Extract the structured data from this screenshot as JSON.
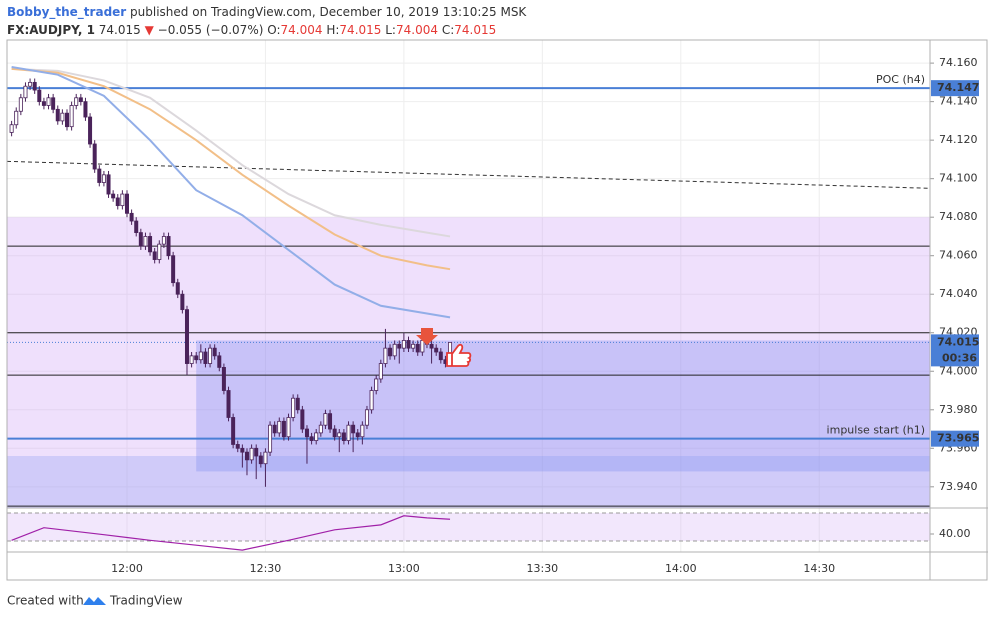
{
  "header": {
    "author": "Bobby_the_trader",
    "published": "published on TradingView.com, December 10, 2019 13:10:25 MSK"
  },
  "footer": {
    "created": "Created with",
    "brand": "TradingView"
  },
  "chart_data": {
    "type": "candlestick",
    "legend": {
      "symbol": "FX:AUDJPY, 1",
      "last": 74.015,
      "arrow": "▼",
      "change": "−0.055 (−0.07%)",
      "fields": [
        {
          "label": "O:",
          "value": 74.004
        },
        {
          "label": "H:",
          "value": 74.015
        },
        {
          "label": "L:",
          "value": 74.004
        },
        {
          "label": "C:",
          "value": 74.015
        }
      ]
    },
    "x": [
      "11:35",
      "11:36",
      "11:37",
      "11:38",
      "11:39",
      "11:40",
      "11:41",
      "11:42",
      "11:43",
      "11:44",
      "11:45",
      "11:46",
      "11:47",
      "11:48",
      "11:49",
      "11:50",
      "11:51",
      "11:52",
      "11:53",
      "11:54",
      "11:55",
      "11:56",
      "11:57",
      "11:58",
      "11:59",
      "12:00",
      "12:01",
      "12:02",
      "12:03",
      "12:04",
      "12:05",
      "12:06",
      "12:07",
      "12:08",
      "12:09",
      "12:10",
      "12:11",
      "12:12",
      "12:13",
      "12:14",
      "12:15",
      "12:16",
      "12:17",
      "12:18",
      "12:19",
      "12:20",
      "12:21",
      "12:22",
      "12:23",
      "12:24",
      "12:25",
      "12:26",
      "12:27",
      "12:28",
      "12:29",
      "12:30",
      "12:31",
      "12:32",
      "12:33",
      "12:34",
      "12:35",
      "12:36",
      "12:37",
      "12:38",
      "12:39",
      "12:40",
      "12:41",
      "12:42",
      "12:43",
      "12:44",
      "12:45",
      "12:46",
      "12:47",
      "12:48",
      "12:49",
      "12:50",
      "12:51",
      "12:52",
      "12:53",
      "12:54",
      "12:55",
      "12:56",
      "12:57",
      "12:58",
      "12:59",
      "13:00",
      "13:01",
      "13:02",
      "13:03",
      "13:04",
      "13:05",
      "13:06",
      "13:07",
      "13:08",
      "13:09",
      "13:10"
    ],
    "ohlc": [
      [
        74.124,
        74.13,
        74.122,
        74.128
      ],
      [
        74.128,
        74.137,
        74.126,
        74.135
      ],
      [
        74.135,
        74.144,
        74.133,
        74.142
      ],
      [
        74.142,
        74.15,
        74.14,
        74.148
      ],
      [
        74.148,
        74.152,
        74.146,
        74.15
      ],
      [
        74.15,
        74.152,
        74.144,
        74.146
      ],
      [
        74.146,
        74.148,
        74.138,
        74.14
      ],
      [
        74.14,
        74.142,
        74.136,
        74.138
      ],
      [
        74.138,
        74.144,
        74.136,
        74.142
      ],
      [
        74.142,
        74.144,
        74.134,
        74.136
      ],
      [
        74.136,
        74.138,
        74.128,
        74.13
      ],
      [
        74.13,
        74.136,
        74.128,
        74.134
      ],
      [
        74.134,
        74.136,
        74.125,
        74.127
      ],
      [
        74.127,
        74.14,
        74.125,
        74.138
      ],
      [
        74.138,
        74.144,
        74.136,
        74.142
      ],
      [
        74.142,
        74.144,
        74.138,
        74.14
      ],
      [
        74.14,
        74.142,
        74.13,
        74.132
      ],
      [
        74.132,
        74.134,
        74.116,
        74.118
      ],
      [
        74.118,
        74.12,
        74.103,
        74.105
      ],
      [
        74.105,
        74.107,
        74.096,
        74.098
      ],
      [
        74.098,
        74.104,
        74.096,
        74.102
      ],
      [
        74.102,
        74.104,
        74.09,
        74.092
      ],
      [
        74.092,
        74.094,
        74.088,
        74.09
      ],
      [
        74.09,
        74.092,
        74.084,
        74.086
      ],
      [
        74.086,
        74.094,
        74.084,
        74.092
      ],
      [
        74.092,
        74.094,
        74.08,
        74.082
      ],
      [
        74.082,
        74.084,
        74.076,
        74.078
      ],
      [
        74.078,
        74.08,
        74.07,
        74.072
      ],
      [
        74.072,
        74.074,
        74.063,
        74.065
      ],
      [
        74.065,
        74.072,
        74.063,
        74.07
      ],
      [
        74.07,
        74.072,
        74.06,
        74.062
      ],
      [
        74.062,
        74.064,
        74.056,
        74.058
      ],
      [
        74.058,
        74.068,
        74.056,
        74.066
      ],
      [
        74.066,
        74.072,
        74.064,
        74.07
      ],
      [
        74.07,
        74.072,
        74.058,
        74.06
      ],
      [
        74.06,
        74.062,
        74.044,
        74.046
      ],
      [
        74.046,
        74.048,
        74.038,
        74.04
      ],
      [
        74.04,
        74.042,
        74.03,
        74.032
      ],
      [
        74.032,
        74.034,
        73.998,
        74.004
      ],
      [
        74.004,
        74.01,
        74.002,
        74.008
      ],
      [
        74.008,
        74.01,
        74.004,
        74.006
      ],
      [
        74.006,
        74.014,
        74.004,
        74.01
      ],
      [
        74.01,
        74.012,
        74.002,
        74.004
      ],
      [
        74.004,
        74.014,
        74.002,
        74.012
      ],
      [
        74.012,
        74.014,
        74.006,
        74.008
      ],
      [
        74.008,
        74.01,
        74.0,
        74.002
      ],
      [
        74.002,
        74.004,
        73.988,
        73.99
      ],
      [
        73.99,
        73.992,
        73.974,
        73.976
      ],
      [
        73.976,
        73.978,
        73.96,
        73.962
      ],
      [
        73.962,
        73.964,
        73.958,
        73.96
      ],
      [
        73.96,
        73.962,
        73.95,
        73.958
      ],
      [
        73.958,
        73.96,
        73.946,
        73.954
      ],
      [
        73.954,
        73.962,
        73.952,
        73.96
      ],
      [
        73.96,
        73.962,
        73.944,
        73.956
      ],
      [
        73.956,
        73.958,
        73.95,
        73.952
      ],
      [
        73.952,
        73.96,
        73.94,
        73.958
      ],
      [
        73.958,
        73.974,
        73.956,
        73.972
      ],
      [
        73.972,
        73.974,
        73.966,
        73.968
      ],
      [
        73.968,
        73.976,
        73.966,
        73.974
      ],
      [
        73.974,
        73.976,
        73.964,
        73.966
      ],
      [
        73.966,
        73.978,
        73.964,
        73.976
      ],
      [
        73.976,
        73.988,
        73.974,
        73.986
      ],
      [
        73.986,
        73.988,
        73.978,
        73.98
      ],
      [
        73.98,
        73.982,
        73.968,
        73.97
      ],
      [
        73.97,
        73.972,
        73.952,
        73.966
      ],
      [
        73.966,
        73.968,
        73.962,
        73.964
      ],
      [
        73.964,
        73.97,
        73.962,
        73.968
      ],
      [
        73.968,
        73.974,
        73.966,
        73.972
      ],
      [
        73.972,
        73.98,
        73.97,
        73.978
      ],
      [
        73.978,
        73.98,
        73.968,
        73.97
      ],
      [
        73.97,
        73.972,
        73.964,
        73.966
      ],
      [
        73.966,
        73.97,
        73.958,
        73.968
      ],
      [
        73.968,
        73.97,
        73.962,
        73.964
      ],
      [
        73.964,
        73.974,
        73.962,
        73.972
      ],
      [
        73.972,
        73.974,
        73.958,
        73.968
      ],
      [
        73.968,
        73.97,
        73.964,
        73.966
      ],
      [
        73.966,
        73.974,
        73.962,
        73.972
      ],
      [
        73.972,
        73.982,
        73.97,
        73.98
      ],
      [
        73.98,
        73.992,
        73.978,
        73.99
      ],
      [
        73.99,
        73.998,
        73.988,
        73.996
      ],
      [
        73.996,
        74.006,
        73.994,
        74.004
      ],
      [
        74.004,
        74.022,
        74.002,
        74.012
      ],
      [
        74.012,
        74.014,
        74.006,
        74.008
      ],
      [
        74.008,
        74.016,
        74.006,
        74.014
      ],
      [
        74.014,
        74.016,
        74.004,
        74.012
      ],
      [
        74.012,
        74.02,
        74.01,
        74.016
      ],
      [
        74.016,
        74.018,
        74.01,
        74.012
      ],
      [
        74.012,
        74.016,
        74.01,
        74.014
      ],
      [
        74.014,
        74.016,
        74.008,
        74.01
      ],
      [
        74.01,
        74.018,
        74.008,
        74.016
      ],
      [
        74.016,
        74.02,
        74.012,
        74.014
      ],
      [
        74.014,
        74.016,
        74.004,
        74.012
      ],
      [
        74.012,
        74.014,
        74.008,
        74.01
      ],
      [
        74.01,
        74.012,
        74.004,
        74.006
      ],
      [
        74.006,
        74.008,
        74.002,
        74.004
      ],
      [
        74.004,
        74.015,
        74.004,
        74.015
      ]
    ],
    "up_color": "#ffffff",
    "down_color": "#4a235a",
    "wick_color": "#4a235a",
    "xlim": [
      "11:34",
      "14:54"
    ],
    "xticks": [
      "12:00",
      "12:30",
      "13:00",
      "13:30",
      "14:00",
      "14:30"
    ],
    "ylim": [
      73.929,
      74.172
    ],
    "yticks": [
      {
        "value": 74.16,
        "label": "74.160"
      },
      {
        "value": 74.14,
        "label": "74.140"
      },
      {
        "value": 74.12,
        "label": "74.120"
      },
      {
        "value": 74.1,
        "label": "74.100"
      },
      {
        "value": 74.08,
        "label": "74.080"
      },
      {
        "value": 74.06,
        "label": "74.060"
      },
      {
        "value": 74.04,
        "label": "74.040"
      },
      {
        "value": 74.02,
        "label": "74.020"
      },
      {
        "value": 74,
        "label": "74.000"
      },
      {
        "value": 73.98,
        "label": "73.980"
      },
      {
        "value": 73.96,
        "label": "73.960"
      },
      {
        "value": 73.94,
        "label": "73.940"
      }
    ],
    "grid": true,
    "ma_x": [
      "11:35",
      "11:45",
      "11:55",
      "12:05",
      "12:15",
      "12:25",
      "12:35",
      "12:45",
      "12:55",
      "13:05",
      "13:10"
    ],
    "ma": [
      {
        "color": "#dcd8dc",
        "values": [
          74.157,
          74.156,
          74.151,
          74.142,
          74.125,
          74.107,
          74.092,
          74.081,
          74.076,
          74.072,
          74.07
        ]
      },
      {
        "color": "#f2bf88",
        "values": [
          74.157,
          74.155,
          74.148,
          74.136,
          74.12,
          74.102,
          74.086,
          74.071,
          74.06,
          74.055,
          74.053
        ]
      },
      {
        "color": "#92aee8",
        "values": [
          74.158,
          74.154,
          74.143,
          74.12,
          74.094,
          74.081,
          74.063,
          74.045,
          74.034,
          74.03,
          74.028
        ]
      }
    ],
    "trendline": {
      "x": [
        "11:34",
        "14:54"
      ],
      "values": [
        74.109,
        74.095
      ],
      "color": "#333333"
    },
    "zones": [
      {
        "from": "11:34",
        "to": "14:54",
        "top": 74.08,
        "bottom": 73.929,
        "color": "rgba(205,160,245,0.32)"
      },
      {
        "from": "12:15",
        "to": "14:54",
        "top": 74.016,
        "bottom": 73.948,
        "color": "rgba(120,135,240,0.33)"
      },
      {
        "from": "11:34",
        "to": "14:54",
        "top": 73.956,
        "bottom": 73.929,
        "color": "rgba(130,150,240,0.28)"
      }
    ],
    "hlines": [
      74.065,
      74.02,
      73.998,
      73.93
    ],
    "levels": [
      {
        "value": 74.147,
        "label": "POC (h4)",
        "color": "#4a7fd6"
      },
      {
        "value": 73.965,
        "label": "impulse start (h1)",
        "color": "#4a7fd6"
      }
    ],
    "last_price": 74.015,
    "last_color": "#4a7fd6",
    "countdown": "00:36",
    "rsi": {
      "x": [
        "11:35",
        "11:42",
        "11:55",
        "12:05",
        "12:15",
        "12:25",
        "12:35",
        "12:45",
        "12:55",
        "13:00",
        "13:05",
        "13:10"
      ],
      "values": [
        31,
        49,
        39,
        31,
        24,
        17,
        31,
        46,
        53,
        66,
        63,
        61
      ],
      "color": "#a020a8",
      "ylim": [
        14.3,
        77.1
      ],
      "yticks": [
        {
          "value": 40,
          "label": "40.00"
        }
      ],
      "bands": [
        70,
        30
      ]
    }
  }
}
